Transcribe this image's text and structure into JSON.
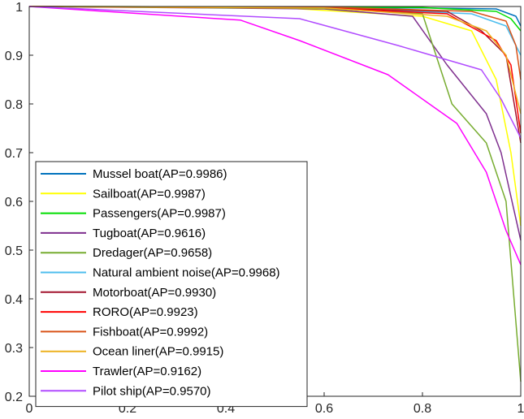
{
  "chart_data": {
    "type": "line",
    "title": "",
    "xlabel": "",
    "ylabel": "",
    "xlim": [
      0,
      1
    ],
    "ylim": [
      0.2,
      1
    ],
    "xticks": [
      0,
      0.2,
      0.4,
      0.6,
      0.8,
      1
    ],
    "yticks": [
      0.2,
      0.3,
      0.4,
      0.5,
      0.6,
      0.7,
      0.8,
      0.9,
      1
    ],
    "xtick_labels": [
      "0",
      "0.2",
      "0.4",
      "0.6",
      "0.8",
      "1"
    ],
    "ytick_labels": [
      "0.2",
      "0.3",
      "0.4",
      "0.5",
      "0.6",
      "0.7",
      "0.8",
      "0.9",
      "1"
    ],
    "grid": false,
    "legend_position": "lower-left",
    "series": [
      {
        "name": "Mussel boat(AP=0.9986)",
        "color": "#0072BD",
        "x": [
          0,
          0.5,
          0.8,
          0.95,
          0.99,
          1.0
        ],
        "y": [
          1,
          0.998,
          0.997,
          0.995,
          0.98,
          0.96
        ]
      },
      {
        "name": "Sailboat(AP=0.9987)",
        "color": "#FFFF00",
        "x": [
          0,
          0.5,
          0.8,
          0.9,
          0.95,
          0.98,
          1.0
        ],
        "y": [
          1,
          0.998,
          0.98,
          0.95,
          0.85,
          0.7,
          0.55
        ]
      },
      {
        "name": "Passengers(AP=0.9987)",
        "color": "#00DD00",
        "x": [
          0,
          0.5,
          0.8,
          0.95,
          0.98,
          1.0
        ],
        "y": [
          1,
          0.999,
          0.998,
          0.99,
          0.975,
          0.95
        ]
      },
      {
        "name": "Tugboat(AP=0.9616)",
        "color": "#7E2F8E",
        "x": [
          0,
          0.6,
          0.78,
          0.85,
          0.93,
          0.96,
          1.0
        ],
        "y": [
          1,
          0.995,
          0.98,
          0.88,
          0.78,
          0.7,
          0.52
        ]
      },
      {
        "name": "Dredager(AP=0.9658)",
        "color": "#77AC30",
        "x": [
          0,
          0.6,
          0.8,
          0.86,
          0.93,
          0.97,
          1.0
        ],
        "y": [
          1,
          0.996,
          0.985,
          0.8,
          0.72,
          0.6,
          0.23
        ]
      },
      {
        "name": "Natural ambient noise(AP=0.9968)",
        "color": "#4DBEEE",
        "x": [
          0,
          0.6,
          0.9,
          0.97,
          1.0
        ],
        "y": [
          1,
          0.998,
          0.985,
          0.96,
          0.9
        ]
      },
      {
        "name": "Motorboat(AP=0.9930)",
        "color": "#A2142F",
        "x": [
          0,
          0.6,
          0.85,
          0.92,
          0.97,
          1.0
        ],
        "y": [
          1,
          0.997,
          0.99,
          0.95,
          0.9,
          0.72
        ]
      },
      {
        "name": "RORO(AP=0.9923)",
        "color": "#FF0000",
        "x": [
          0,
          0.6,
          0.85,
          0.95,
          0.98,
          1.0
        ],
        "y": [
          1,
          0.997,
          0.985,
          0.93,
          0.88,
          0.74
        ]
      },
      {
        "name": "Fishboat(AP=0.9992)",
        "color": "#D95319",
        "x": [
          0,
          0.6,
          0.9,
          0.97,
          0.99,
          1.0
        ],
        "y": [
          1,
          0.999,
          0.99,
          0.97,
          0.92,
          0.85
        ]
      },
      {
        "name": "Ocean liner(AP=0.9915)",
        "color": "#EDB120",
        "x": [
          0,
          0.6,
          0.85,
          0.93,
          0.97,
          1.0
        ],
        "y": [
          1,
          0.997,
          0.98,
          0.95,
          0.9,
          0.78
        ]
      },
      {
        "name": "Trawler(AP=0.9162)",
        "color": "#FF00FF",
        "x": [
          0,
          0.43,
          0.55,
          0.73,
          0.87,
          0.93,
          0.97,
          1.0
        ],
        "y": [
          1,
          0.972,
          0.93,
          0.86,
          0.76,
          0.66,
          0.54,
          0.47
        ]
      },
      {
        "name": "Pilot ship(AP=0.9570)",
        "color": "#B14CFF",
        "x": [
          0,
          0.55,
          0.75,
          0.92,
          0.96,
          1.0
        ],
        "y": [
          1,
          0.975,
          0.92,
          0.87,
          0.81,
          0.73
        ]
      }
    ]
  }
}
